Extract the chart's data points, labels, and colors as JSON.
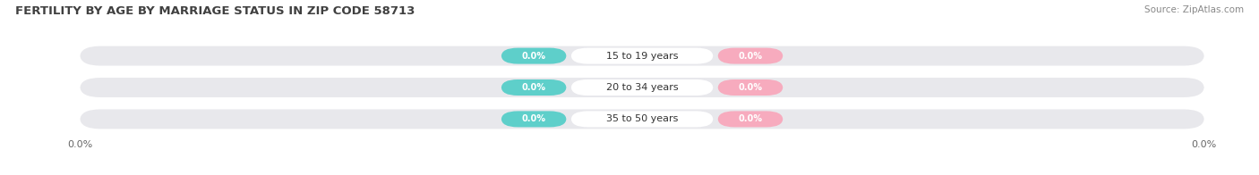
{
  "title": "FERTILITY BY AGE BY MARRIAGE STATUS IN ZIP CODE 58713",
  "source": "Source: ZipAtlas.com",
  "categories": [
    "15 to 19 years",
    "20 to 34 years",
    "35 to 50 years"
  ],
  "married_values": [
    0.0,
    0.0,
    0.0
  ],
  "unmarried_values": [
    0.0,
    0.0,
    0.0
  ],
  "married_color": "#5ECFCA",
  "unmarried_color": "#F7ABBE",
  "bar_bg_color": "#E8E8EC",
  "title_fontsize": 9.5,
  "source_fontsize": 7.5,
  "background_color": "#ffffff",
  "bar_height": 0.62,
  "badge_fontsize": 7,
  "cat_fontsize": 8,
  "tick_fontsize": 8
}
